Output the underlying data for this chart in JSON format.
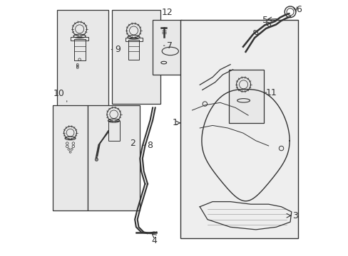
{
  "bg_color": "#ffffff",
  "light_gray": "#d8d8d8",
  "line_color": "#333333",
  "box_fill": "#e8e8e8",
  "figure_width": 4.89,
  "figure_height": 3.6,
  "dpi": 100
}
